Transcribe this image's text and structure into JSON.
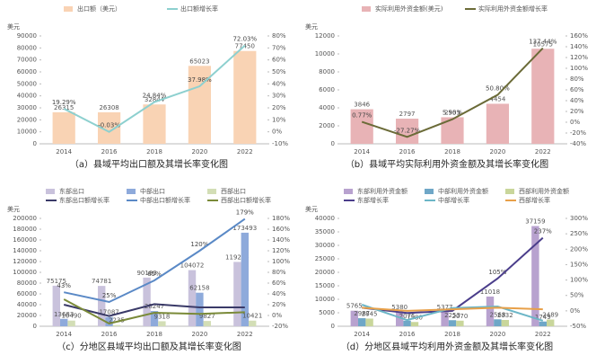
{
  "chart_data": [
    {
      "type": "combo",
      "title": "（a）县域平均出口额及其增长率变化图",
      "y_label": "美元",
      "categories": [
        "2014",
        "2016",
        "2018",
        "2020",
        "2022"
      ],
      "ylim": [
        0,
        90000
      ],
      "yticks": [
        0,
        10000,
        20000,
        30000,
        40000,
        50000,
        60000,
        70000,
        80000,
        90000
      ],
      "y2lim": [
        -10,
        80
      ],
      "y2ticks": [
        {
          "value": -10,
          "label": "-10%"
        },
        {
          "value": 0,
          "label": "0%"
        },
        {
          "value": 10,
          "label": "10%"
        },
        {
          "value": 20,
          "label": "20%"
        },
        {
          "value": 30,
          "label": "30%"
        },
        {
          "value": 40,
          "label": "40%"
        },
        {
          "value": 50,
          "label": "50%"
        },
        {
          "value": 60,
          "label": "60%"
        },
        {
          "value": 70,
          "label": "70%"
        },
        {
          "value": 80,
          "label": "80%"
        }
      ],
      "series": [
        {
          "name": "出口额（美元）",
          "mark": "bar",
          "color": "#f9d3b4",
          "values": [
            26315,
            26308,
            32844,
            65023,
            77450
          ]
        },
        {
          "name": "出口额增长率",
          "mark": "line",
          "axis": "y2",
          "color": "#8dd0cf",
          "values": [
            19.29,
            -0.03,
            24.84,
            37.98,
            72.03
          ],
          "value_labels": [
            "19.29%",
            "-0.03%",
            "24.84%",
            "37.98%",
            "72.03%"
          ]
        }
      ]
    },
    {
      "type": "combo",
      "title": "（b）县域平均实际利用外资金额及其增长率变化图",
      "y_label": "美元",
      "categories": [
        "2014",
        "2016",
        "2018",
        "2020",
        "2022"
      ],
      "ylim": [
        0,
        12000
      ],
      "yticks": [
        0,
        2000,
        4000,
        6000,
        8000,
        10000,
        12000
      ],
      "y2lim": [
        -40,
        160
      ],
      "y2ticks": [
        {
          "value": -40,
          "label": "-40%"
        },
        {
          "value": -20,
          "label": "-20%"
        },
        {
          "value": 0,
          "label": "0%"
        },
        {
          "value": 20,
          "label": "20%"
        },
        {
          "value": 40,
          "label": "40%"
        },
        {
          "value": 60,
          "label": "60%"
        },
        {
          "value": 80,
          "label": "80%"
        },
        {
          "value": 100,
          "label": "100%"
        },
        {
          "value": 120,
          "label": "120%"
        },
        {
          "value": 140,
          "label": "140%"
        },
        {
          "value": 160,
          "label": "160%"
        }
      ],
      "series": [
        {
          "name": "实际利用外资金额(美元)",
          "mark": "bar",
          "color": "#e8b3b6",
          "values": [
            3846,
            2797,
            2953,
            4454,
            10575
          ]
        },
        {
          "name": "实际利用外资金额增长率",
          "mark": "line",
          "axis": "y2",
          "color": "#6b6b38",
          "values": [
            0.77,
            -27.27,
            5.5,
            50.8,
            137.44
          ],
          "value_labels": [
            "0.77%",
            "-27.27%",
            "5.50%",
            "50.80%",
            "137.44%"
          ]
        }
      ]
    },
    {
      "type": "combo",
      "title": "（c）分地区县域平均出口额及其增长率变化图",
      "y_label": "美元",
      "categories": [
        "2014",
        "2016",
        "2018",
        "2020",
        "2022"
      ],
      "ylim": [
        0,
        200000
      ],
      "yticks": [
        0,
        20000,
        40000,
        60000,
        80000,
        100000,
        120000,
        140000,
        160000,
        180000,
        200000
      ],
      "y2lim": [
        -20,
        180
      ],
      "y2ticks": [
        {
          "value": -20,
          "label": "-20%"
        },
        {
          "value": 0,
          "label": "0%"
        },
        {
          "value": 20,
          "label": "20%"
        },
        {
          "value": 40,
          "label": "40%"
        },
        {
          "value": 60,
          "label": "60%"
        },
        {
          "value": 80,
          "label": "80%"
        },
        {
          "value": 100,
          "label": "100%"
        },
        {
          "value": 120,
          "label": "120%"
        },
        {
          "value": 140,
          "label": "140%"
        },
        {
          "value": 160,
          "label": "160%"
        },
        {
          "value": 180,
          "label": "180%"
        }
      ],
      "series": [
        {
          "name": "东部出口",
          "mark": "bar",
          "color": "#c9c2dc",
          "values": [
            75175,
            74781,
            90183,
            104072,
            119285
          ]
        },
        {
          "name": "中部出口",
          "mark": "bar",
          "color": "#8eaadb",
          "values": [
            13683,
            17087,
            28247,
            62158,
            173493
          ]
        },
        {
          "name": "西部出口",
          "mark": "bar",
          "color": "#d3deb6",
          "values": [
            10490,
            2235,
            9318,
            9827,
            10421
          ]
        },
        {
          "name": "东部出口额增长率",
          "mark": "line",
          "axis": "y2",
          "color": "#3a3a68",
          "values": [
            20,
            -1,
            21,
            15,
            15
          ]
        },
        {
          "name": "中部出口额增长率",
          "mark": "line",
          "axis": "y2",
          "color": "#5a89c6",
          "values": [
            43,
            25,
            65,
            120,
            179
          ],
          "value_labels": [
            "43%",
            "25%",
            "65%",
            "120%",
            "179%"
          ]
        },
        {
          "name": "西部出口额增长率",
          "mark": "line",
          "axis": "y2",
          "color": "#7a8a38",
          "values": [
            30,
            -15,
            5,
            3,
            6
          ]
        }
      ]
    },
    {
      "type": "combo",
      "title": "（d）分地区县域平均利用外资金额及其增长率变化图",
      "y_label": "美元",
      "categories": [
        "2014",
        "2016",
        "2018",
        "2020",
        "2022"
      ],
      "ylim": [
        0,
        40000
      ],
      "yticks": [
        0,
        5000,
        10000,
        15000,
        20000,
        25000,
        30000,
        35000,
        40000
      ],
      "y2lim": [
        -50,
        300
      ],
      "y2ticks": [
        {
          "value": -50,
          "label": "-50%"
        },
        {
          "value": 0,
          "label": "0%"
        },
        {
          "value": 50,
          "label": "50%"
        },
        {
          "value": 100,
          "label": "100%"
        },
        {
          "value": 150,
          "label": "150%"
        },
        {
          "value": 200,
          "label": "200%"
        },
        {
          "value": 250,
          "label": "250%"
        },
        {
          "value": 300,
          "label": "300%"
        }
      ],
      "series": [
        {
          "name": "东部利用外资金额",
          "mark": "bar",
          "color": "#b8a2cf",
          "values": [
            5765,
            5380,
            5377,
            11018,
            37159
          ]
        },
        {
          "name": "中部利用外资金额",
          "mark": "bar",
          "color": "#6fa7c7",
          "values": [
            2987,
            2075,
            2253,
            2568,
            1749
          ]
        },
        {
          "name": "西部利用外资金额",
          "mark": "bar",
          "color": "#c9d69b",
          "values": [
            2845,
            1580,
            2070,
            2332,
            2489
          ]
        },
        {
          "name": "东部增长率",
          "mark": "line",
          "axis": "y2",
          "color": "#4b3e8b",
          "values": [
            10,
            -7,
            0,
            105,
            237
          ],
          "value_labels": [
            null,
            null,
            null,
            "105%",
            "237%"
          ]
        },
        {
          "name": "中部增长率",
          "mark": "line",
          "axis": "y2",
          "color": "#6cb6c7",
          "values": [
            20,
            -30,
            9,
            14,
            -32
          ]
        },
        {
          "name": "西部增长率",
          "mark": "line",
          "axis": "y2",
          "color": "#e8a049",
          "values": [
            10,
            0,
            5,
            10,
            5
          ]
        }
      ]
    }
  ]
}
